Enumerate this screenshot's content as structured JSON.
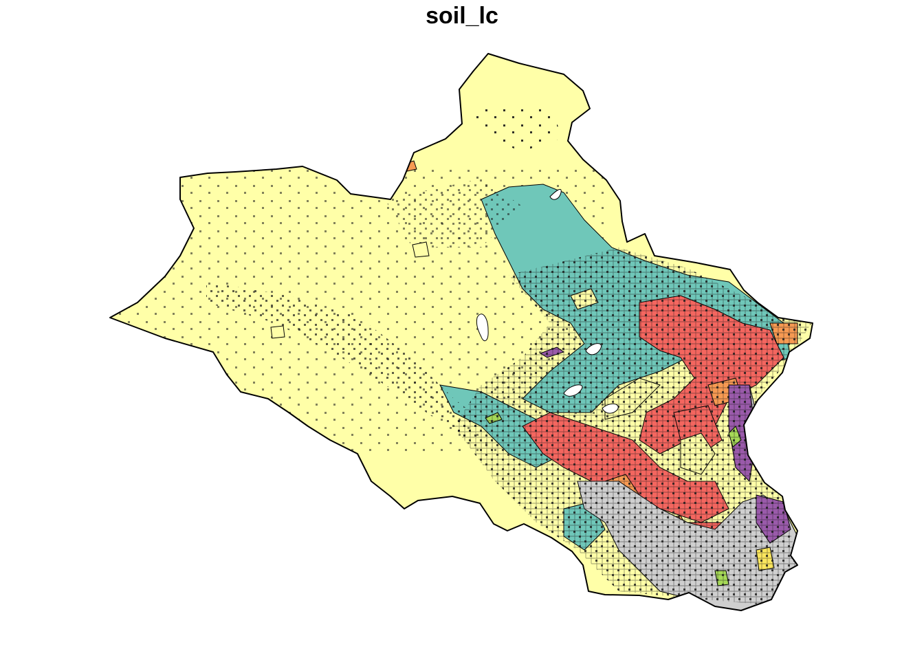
{
  "title": "soil_lc",
  "palette": {
    "base": "#ffffa8",
    "teal": "#6fc7b9",
    "red": "#f4665f",
    "grey": "#cfcfcf",
    "purple": "#9a5aaa",
    "orange": "#f79a52",
    "green": "#a6d957",
    "yellow": "#fbe65e",
    "white": "#ffffff",
    "outline": "#000000"
  }
}
